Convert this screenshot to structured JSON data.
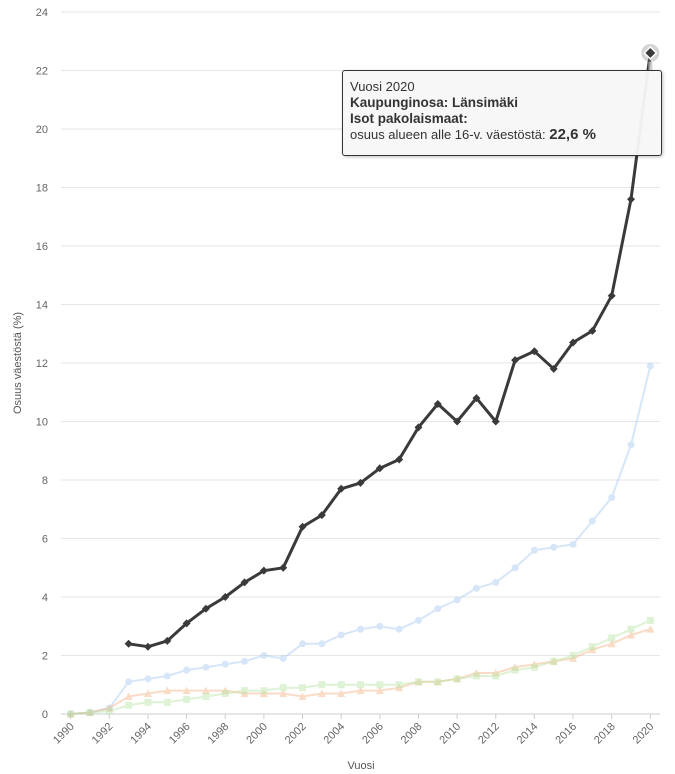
{
  "chart_data": {
    "type": "line",
    "title": "",
    "xlabel": "Vuosi",
    "ylabel": "Osuus väestöstä (%)",
    "xlim": [
      1989.5,
      2020.5
    ],
    "ylim": [
      0,
      24
    ],
    "y_ticks": [
      0,
      2,
      4,
      6,
      8,
      10,
      12,
      14,
      16,
      18,
      20,
      22,
      24
    ],
    "x_ticks": [
      1990,
      1992,
      1994,
      1996,
      1998,
      2000,
      2002,
      2004,
      2006,
      2008,
      2010,
      2012,
      2014,
      2016,
      2018,
      2020
    ],
    "grid": "horizontal",
    "series": [
      {
        "color": "#a6c8f0",
        "marker": "circle",
        "x": [
          1990,
          1991,
          1992,
          1993,
          1994,
          1995,
          1996,
          1997,
          1998,
          1999,
          2000,
          2001,
          2002,
          2003,
          2004,
          2005,
          2006,
          2007,
          2008,
          2009,
          2010,
          2011,
          2012,
          2013,
          2014,
          2015,
          2016,
          2017,
          2018,
          2019,
          2020
        ],
        "values": [
          0,
          0.05,
          0.2,
          1.1,
          1.2,
          1.3,
          1.5,
          1.6,
          1.7,
          1.8,
          2.0,
          1.9,
          2.4,
          2.4,
          2.7,
          2.9,
          3.0,
          2.9,
          3.2,
          3.6,
          3.9,
          4.3,
          4.5,
          5.0,
          5.6,
          5.7,
          5.8,
          6.6,
          7.4,
          9.2,
          11.9
        ]
      },
      {
        "color": "#f4b183",
        "marker": "triangle",
        "x": [
          1990,
          1991,
          1992,
          1993,
          1994,
          1995,
          1996,
          1997,
          1998,
          1999,
          2000,
          2001,
          2002,
          2003,
          2004,
          2005,
          2006,
          2007,
          2008,
          2009,
          2010,
          2011,
          2012,
          2013,
          2014,
          2015,
          2016,
          2017,
          2018,
          2019,
          2020
        ],
        "values": [
          0,
          0.05,
          0.2,
          0.6,
          0.7,
          0.8,
          0.8,
          0.8,
          0.8,
          0.7,
          0.7,
          0.7,
          0.6,
          0.7,
          0.7,
          0.8,
          0.8,
          0.9,
          1.1,
          1.1,
          1.2,
          1.4,
          1.4,
          1.6,
          1.7,
          1.8,
          1.9,
          2.2,
          2.4,
          2.7,
          2.9
        ]
      },
      {
        "color": "#b7e4a3",
        "marker": "square",
        "x": [
          1990,
          1991,
          1992,
          1993,
          1994,
          1995,
          1996,
          1997,
          1998,
          1999,
          2000,
          2001,
          2002,
          2003,
          2004,
          2005,
          2006,
          2007,
          2008,
          2009,
          2010,
          2011,
          2012,
          2013,
          2014,
          2015,
          2016,
          2017,
          2018,
          2019,
          2020
        ],
        "values": [
          0,
          0.05,
          0.1,
          0.3,
          0.4,
          0.4,
          0.5,
          0.6,
          0.7,
          0.8,
          0.8,
          0.9,
          0.9,
          1.0,
          1.0,
          1.0,
          1.0,
          1.0,
          1.1,
          1.1,
          1.2,
          1.3,
          1.3,
          1.5,
          1.6,
          1.8,
          2.0,
          2.3,
          2.6,
          2.9,
          3.2
        ]
      },
      {
        "name": "Isot pakolaismaat",
        "color": "#3a3a3a",
        "marker": "diamond",
        "x": [
          1993,
          1994,
          1995,
          1996,
          1997,
          1998,
          1999,
          2000,
          2001,
          2002,
          2003,
          2004,
          2005,
          2006,
          2007,
          2008,
          2009,
          2010,
          2011,
          2012,
          2013,
          2014,
          2015,
          2016,
          2017,
          2018,
          2019,
          2020
        ],
        "values": [
          2.4,
          2.3,
          2.5,
          3.1,
          3.6,
          4.0,
          4.5,
          4.9,
          5.0,
          6.4,
          6.8,
          7.7,
          7.9,
          8.4,
          8.7,
          9.8,
          10.6,
          10.0,
          10.8,
          10.0,
          12.1,
          12.4,
          11.8,
          12.7,
          13.1,
          14.3,
          17.6,
          22.6
        ]
      }
    ]
  },
  "tooltip": {
    "year_line": "Vuosi 2020",
    "district_line": "Kaupunginosa: Länsimäki",
    "series_line": "Isot pakolaismaat:",
    "measure_label": "osuus alueen alle 16-v. väestöstä:",
    "value": "22,6 %"
  }
}
